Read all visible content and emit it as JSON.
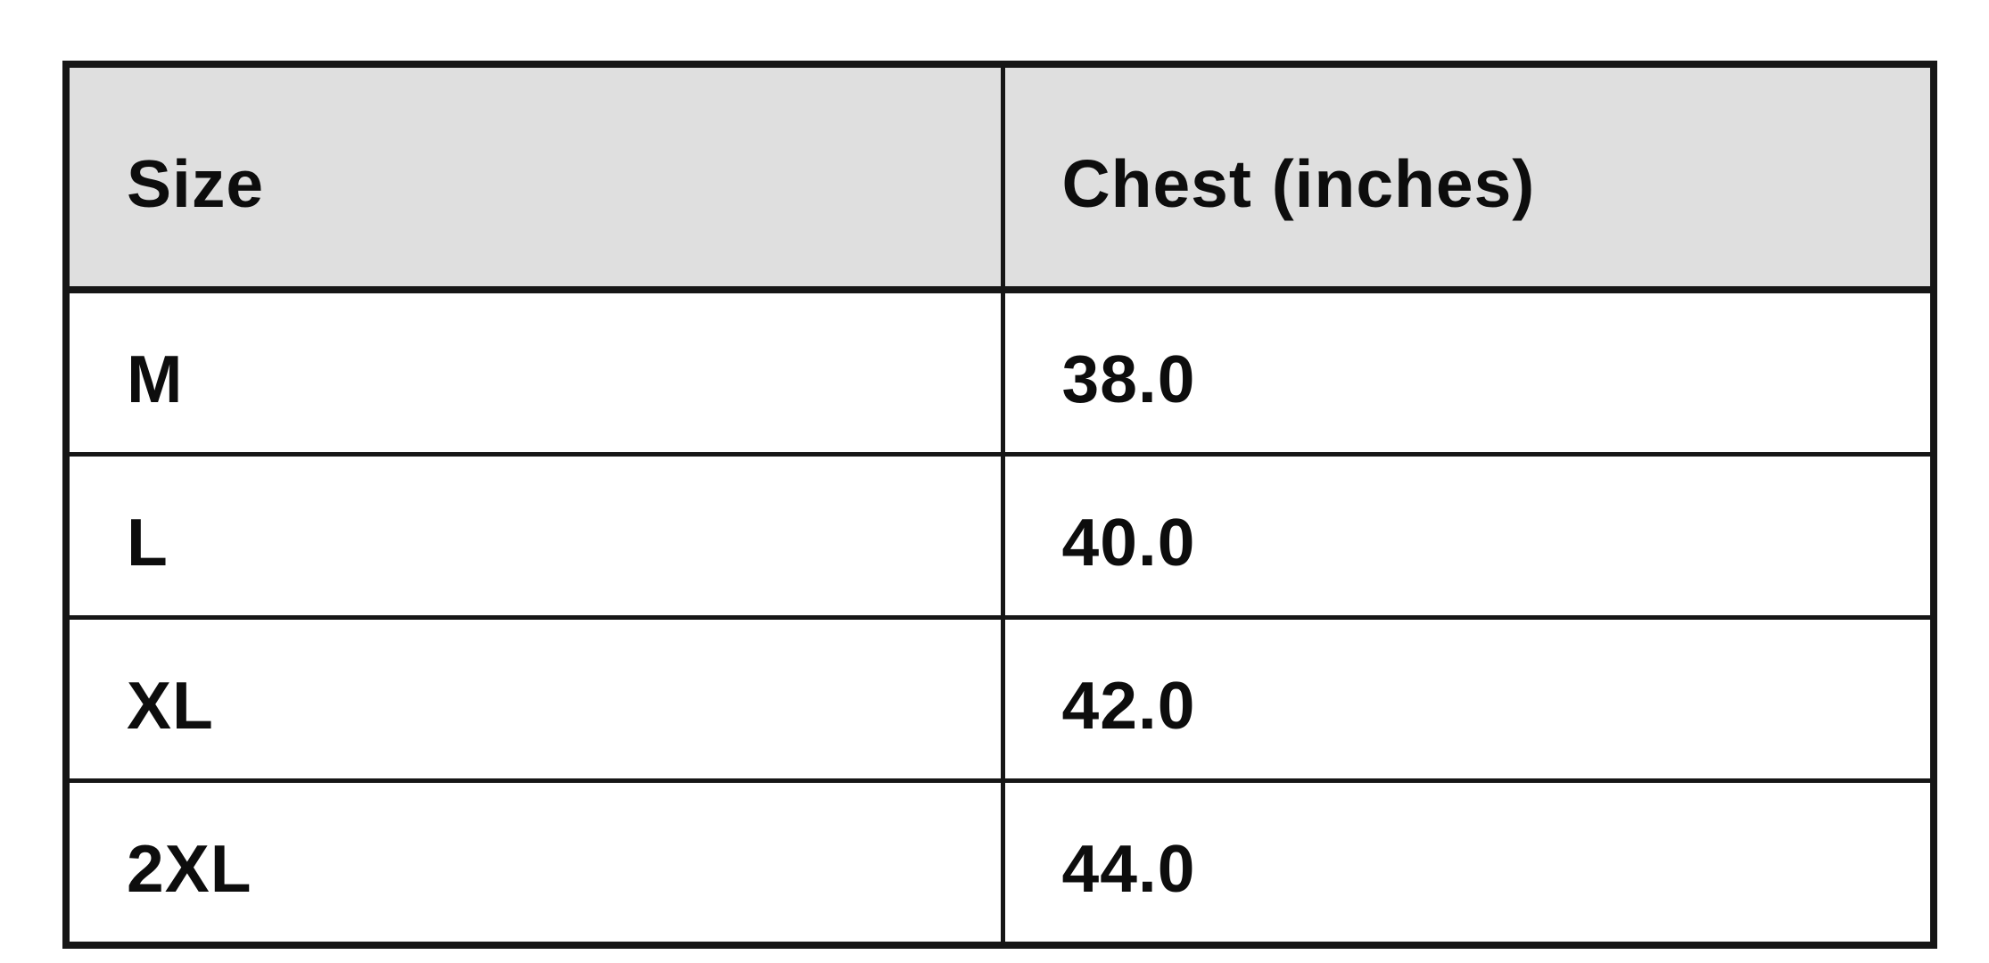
{
  "page": {
    "background": "#ffffff"
  },
  "colors": {
    "header_bg": "#dfdfdf",
    "border": "#161616",
    "text": "#0d0d0d",
    "row_bg": "#ffffff"
  },
  "chart_data": {
    "type": "table",
    "columns": [
      "Size",
      "Chest (inches)"
    ],
    "rows": [
      {
        "size": "M",
        "chest": "38.0"
      },
      {
        "size": "L",
        "chest": "40.0"
      },
      {
        "size": "XL",
        "chest": "42.0"
      },
      {
        "size": "2XL",
        "chest": "44.0"
      }
    ],
    "layout_hints": {
      "header_row_shaded": true,
      "grid": true,
      "text_align": "left"
    }
  }
}
